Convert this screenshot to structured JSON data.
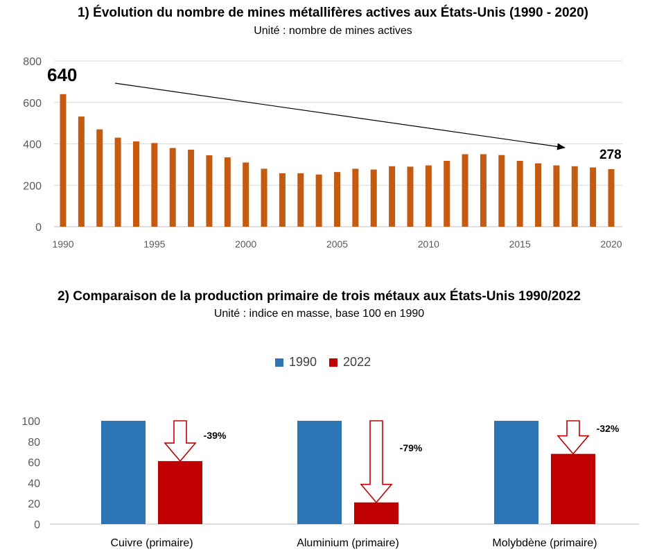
{
  "chart_data": [
    {
      "type": "bar",
      "title": "1) Évolution du nombre de mines métallifères  actives aux États-Unis (1990 - 2020)",
      "subtitle": "Unité : nombre de mines actives",
      "x": [
        1990,
        1991,
        1992,
        1993,
        1994,
        1995,
        1996,
        1997,
        1998,
        1999,
        2000,
        2001,
        2002,
        2003,
        2004,
        2005,
        2006,
        2007,
        2008,
        2009,
        2010,
        2011,
        2012,
        2013,
        2014,
        2015,
        2016,
        2017,
        2018,
        2019,
        2020
      ],
      "values": [
        640,
        532,
        470,
        430,
        412,
        404,
        380,
        372,
        345,
        335,
        310,
        280,
        258,
        258,
        252,
        264,
        280,
        276,
        292,
        290,
        296,
        318,
        350,
        350,
        346,
        318,
        306,
        296,
        292,
        286,
        278
      ],
      "ylim": [
        0,
        800
      ],
      "yticks": [
        0,
        200,
        400,
        600,
        800
      ],
      "xticks": [
        1990,
        1995,
        2000,
        2005,
        2010,
        2015,
        2020
      ],
      "color": "#C55A11",
      "grid": true,
      "annotations": {
        "start_label": "640",
        "end_label": "278"
      }
    },
    {
      "type": "bar",
      "title": "2) Comparaison de la production primaire de trois métaux aux États-Unis 1990/2022",
      "subtitle": "Unité : indice en masse, base 100 en 1990",
      "categories": [
        "Cuivre (primaire)",
        "Aluminium (primaire)",
        "Molybdène (primaire)"
      ],
      "series": [
        {
          "name": "1990",
          "values": [
            100,
            100,
            100
          ],
          "color": "#2E75B6"
        },
        {
          "name": "2022",
          "values": [
            61,
            21,
            68
          ],
          "color": "#C00000"
        }
      ],
      "ylim": [
        0,
        100
      ],
      "yticks": [
        0,
        20,
        40,
        60,
        80,
        100
      ],
      "legend": "top",
      "annotations": [
        "-39%",
        "-79%",
        "-32%"
      ]
    }
  ]
}
